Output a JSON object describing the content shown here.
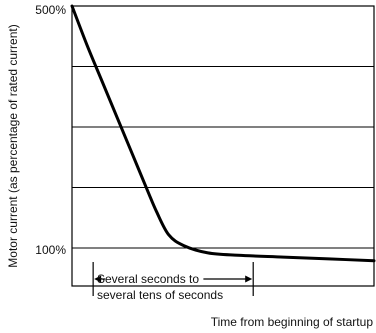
{
  "chart_data": {
    "type": "line",
    "title": "",
    "xlabel": "Time from beginning of startup",
    "ylabel": "Motor current (as percentage of rated current)",
    "y_tick_labels": [
      {
        "value": 500,
        "label": "500%"
      },
      {
        "value": 100,
        "label": "100%"
      }
    ],
    "ylim": [
      40,
      500
    ],
    "xlim": [
      0,
      1
    ],
    "grid": true,
    "gridlines_y": [
      100,
      200,
      300,
      400
    ],
    "series": [
      {
        "values": [
          {
            "x": 0.0,
            "y": 500
          },
          {
            "x": 0.05,
            "y": 435
          },
          {
            "x": 0.1,
            "y": 375
          },
          {
            "x": 0.15,
            "y": 315
          },
          {
            "x": 0.2,
            "y": 255
          },
          {
            "x": 0.25,
            "y": 195
          },
          {
            "x": 0.28,
            "y": 160
          },
          {
            "x": 0.32,
            "y": 122
          },
          {
            "x": 0.37,
            "y": 104
          },
          {
            "x": 0.45,
            "y": 92
          },
          {
            "x": 0.55,
            "y": 88
          },
          {
            "x": 0.7,
            "y": 85
          },
          {
            "x": 0.85,
            "y": 82
          },
          {
            "x": 1.0,
            "y": 79
          }
        ]
      }
    ],
    "annotation": {
      "line1": "Several seconds to",
      "line2": "several tens of seconds",
      "x_start": 0.07,
      "x_end": 0.6
    }
  }
}
